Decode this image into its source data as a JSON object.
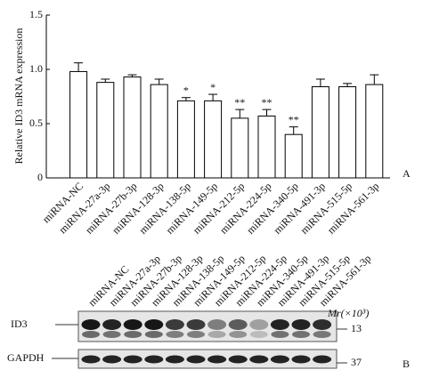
{
  "chart_data": {
    "type": "bar",
    "ylabel": "Relative ID3 mRNA expression",
    "panel_label": "A",
    "categories": [
      "miRNA-NC",
      "miRNA-27a-3p",
      "miRNA-27b-3p",
      "miRNA-128-3p",
      "miRNA-138-5p",
      "miRNA-149-5p",
      "miRNA-212-5p",
      "miRNA-224-5p",
      "miRNA-340-5p",
      "miRNA-491-3p",
      "miRNA-515-5p",
      "miRNA-561-3p"
    ],
    "values": [
      0.98,
      0.88,
      0.93,
      0.86,
      0.71,
      0.71,
      0.55,
      0.57,
      0.4,
      0.84,
      0.84,
      0.86
    ],
    "errors": [
      0.08,
      0.03,
      0.02,
      0.05,
      0.03,
      0.06,
      0.08,
      0.06,
      0.07,
      0.07,
      0.03,
      0.09
    ],
    "significance": [
      null,
      null,
      null,
      null,
      "*",
      "*",
      "**",
      "**",
      "**",
      null,
      null,
      null
    ],
    "color": "#ffffff",
    "ylim": [
      0,
      1.5
    ],
    "yticks": [
      0,
      0.5,
      {
        "value": 1,
        "label": "1.0"
      },
      1.5
    ]
  },
  "blot": {
    "panel_label": "B",
    "rows": [
      "ID3",
      "GAPDH"
    ],
    "markers": [
      "13",
      "37"
    ],
    "marker_unit": "Mr(×10³)"
  }
}
